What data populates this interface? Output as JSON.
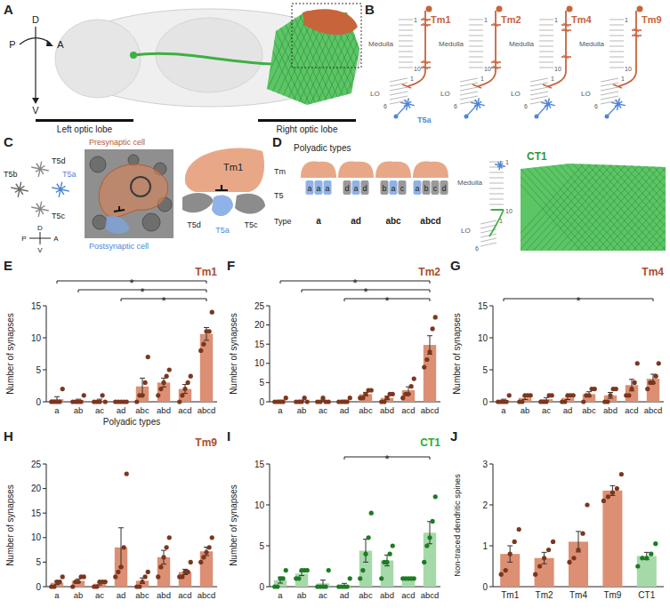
{
  "chart_data": [
    {
      "type": "bar",
      "panel": "E",
      "title": "Tm1",
      "y_label": "Number of synapses",
      "x_label": "Polyadic types",
      "categories": [
        "a",
        "ab",
        "ac",
        "ad",
        "abc",
        "abd",
        "acd",
        "abcd"
      ],
      "values": [
        0.4,
        0.2,
        0.2,
        0,
        2.4,
        3,
        2,
        10.6
      ],
      "errors": [
        0.4,
        0.2,
        0.2,
        0,
        1.3,
        0.7,
        0.7,
        1.0
      ],
      "points": [
        [
          0,
          0,
          0,
          0,
          2
        ],
        [
          0,
          0,
          0,
          0,
          1
        ],
        [
          0,
          0,
          0,
          1,
          0
        ],
        [
          0,
          0,
          0,
          0,
          0
        ],
        [
          0,
          1,
          1,
          3,
          7
        ],
        [
          1,
          2,
          3,
          4,
          5
        ],
        [
          0,
          1,
          2,
          3,
          4
        ],
        [
          8,
          9,
          11,
          11,
          14
        ]
      ],
      "color": "#dc8f73",
      "ylim": [
        0,
        15
      ],
      "yticks": [
        0,
        5,
        10,
        15
      ],
      "significance": [
        {
          "from": "a",
          "to": "abcd",
          "label": "*"
        },
        {
          "from": "ab",
          "to": "abcd",
          "label": "*"
        },
        {
          "from": "ad",
          "to": "abcd",
          "label": "*"
        }
      ]
    },
    {
      "type": "bar",
      "panel": "F",
      "title": "Tm2",
      "y_label": "Number of synapses",
      "categories": [
        "a",
        "ab",
        "ac",
        "ad",
        "abc",
        "abd",
        "acd",
        "abcd"
      ],
      "values": [
        0.2,
        0.2,
        0.2,
        0.2,
        2,
        1,
        3,
        14.8
      ],
      "errors": [
        0.2,
        0.2,
        0.2,
        0.2,
        0.45,
        0.45,
        0.9,
        2.4
      ],
      "points": [
        [
          0,
          0,
          0,
          0,
          1
        ],
        [
          0,
          0,
          0,
          1,
          0
        ],
        [
          0,
          0,
          1,
          0,
          0
        ],
        [
          0,
          0,
          0,
          0,
          1
        ],
        [
          1,
          1,
          2,
          3,
          3
        ],
        [
          0,
          0,
          1,
          2,
          2
        ],
        [
          1,
          2,
          2,
          4,
          6
        ],
        [
          9,
          11,
          13,
          19,
          22
        ]
      ],
      "color": "#dc8f73",
      "ylim": [
        0,
        25
      ],
      "yticks": [
        0,
        5,
        10,
        15,
        20,
        25
      ],
      "significance": [
        {
          "from": "a",
          "to": "abcd",
          "label": "*"
        },
        {
          "from": "ab",
          "to": "abcd",
          "label": "*"
        },
        {
          "from": "ad",
          "to": "abcd",
          "label": "*"
        }
      ]
    },
    {
      "type": "bar",
      "panel": "G",
      "title": "Tm4",
      "y_label": "Number of synapses",
      "categories": [
        "a",
        "ab",
        "ac",
        "ad",
        "abc",
        "abd",
        "acd",
        "abcd"
      ],
      "values": [
        0.2,
        0.6,
        0.4,
        0.6,
        1.2,
        1,
        2.6,
        3.6
      ],
      "errors": [
        0.2,
        0.25,
        0.25,
        0.25,
        0.37,
        0.45,
        0.9,
        0.7
      ],
      "points": [
        [
          0,
          0,
          0,
          0,
          1
        ],
        [
          0,
          0,
          1,
          1,
          1
        ],
        [
          0,
          0,
          0,
          1,
          1
        ],
        [
          0,
          0,
          1,
          1,
          1
        ],
        [
          0,
          1,
          1,
          2,
          2
        ],
        [
          0,
          0,
          1,
          2,
          2
        ],
        [
          1,
          1,
          2,
          3,
          6
        ],
        [
          2,
          3,
          3,
          4,
          6
        ]
      ],
      "color": "#dc8f73",
      "ylim": [
        0,
        15
      ],
      "yticks": [
        0,
        5,
        10,
        15
      ],
      "significance": [
        {
          "from": "a",
          "to": "abcd",
          "label": "*"
        }
      ]
    },
    {
      "type": "bar",
      "panel": "H",
      "title": "Tm9",
      "y_label": "Number of synapses",
      "categories": [
        "a",
        "ab",
        "ac",
        "ad",
        "abc",
        "abd",
        "acd",
        "abcd"
      ],
      "values": [
        0.8,
        1.2,
        0.6,
        8,
        1.2,
        6,
        3,
        7.2
      ],
      "errors": [
        0.37,
        0.37,
        0.25,
        4,
        0.58,
        1.4,
        0.55,
        0.86
      ],
      "points": [
        [
          0,
          0,
          1,
          1,
          2
        ],
        [
          0,
          1,
          1,
          2,
          2
        ],
        [
          0,
          0,
          1,
          1,
          1
        ],
        [
          2,
          3,
          4,
          8,
          23
        ],
        [
          0,
          0,
          1,
          2,
          3
        ],
        [
          2,
          4,
          6,
          8,
          10
        ],
        [
          2,
          2,
          3,
          3,
          5
        ],
        [
          5,
          6,
          7,
          8,
          10
        ]
      ],
      "color": "#dc8f73",
      "ylim": [
        0,
        25
      ],
      "yticks": [
        0,
        5,
        10,
        15,
        20,
        25
      ],
      "significance": []
    },
    {
      "type": "bar",
      "panel": "I",
      "title": "CT1",
      "y_label": "Number of synapses",
      "categories": [
        "a",
        "ab",
        "ac",
        "ad",
        "abc",
        "abd",
        "acd",
        "abcd"
      ],
      "values": [
        0.8,
        1.6,
        0.4,
        0.2,
        4.4,
        3.2,
        1,
        6.6
      ],
      "errors": [
        0.37,
        0.25,
        0.4,
        0.2,
        1.4,
        0.66,
        0,
        1.36
      ],
      "points": [
        [
          0,
          0,
          1,
          1,
          2
        ],
        [
          1,
          1,
          2,
          2,
          2
        ],
        [
          0,
          0,
          0,
          0,
          2
        ],
        [
          0,
          0,
          0,
          0,
          1
        ],
        [
          1,
          2,
          4,
          6,
          9
        ],
        [
          1,
          3,
          3,
          4,
          5
        ],
        [
          1,
          1,
          1,
          1,
          1
        ],
        [
          3,
          5,
          6,
          8,
          11
        ]
      ],
      "color": "#a6d9a9",
      "ylim": [
        0,
        15
      ],
      "yticks": [
        0,
        5,
        10,
        15
      ],
      "significance": [
        {
          "from": "ad",
          "to": "abcd",
          "label": "*"
        }
      ]
    },
    {
      "type": "bar",
      "panel": "J",
      "y_label": "Non-traced dendritic spines",
      "categories": [
        "Tm1",
        "Tm2",
        "Tm4",
        "Tm9",
        "CT1"
      ],
      "values": [
        0.8,
        0.7,
        1.1,
        2.35,
        0.75
      ],
      "errors": [
        0.2,
        0.14,
        0.25,
        0.12,
        0.09
      ],
      "points": [
        [
          0.3,
          0.4,
          0.8,
          1.1,
          1.4
        ],
        [
          0.3,
          0.5,
          0.7,
          0.9,
          1.1
        ],
        [
          0.6,
          0.7,
          0.9,
          1.3,
          2.0
        ],
        [
          2.1,
          2.2,
          2.3,
          2.4,
          2.75
        ],
        [
          0.5,
          0.7,
          0.7,
          0.8,
          1.05
        ]
      ],
      "colors": [
        "#dc8f73",
        "#dc8f73",
        "#dc8f73",
        "#dc8f73",
        "#a6d9a9"
      ],
      "ylim": [
        0,
        3
      ],
      "yticks": [
        0,
        1,
        2,
        3
      ],
      "significance": []
    }
  ],
  "figure": {
    "A": {
      "panel": "A",
      "compass": [
        "D",
        "V",
        "P",
        "A"
      ],
      "lobes": [
        "Left optic lobe",
        "Right optic lobe"
      ]
    },
    "B": {
      "panel": "B",
      "neurons": [
        "Tm1",
        "Tm2",
        "Tm4",
        "Tm9"
      ],
      "medulla": "Medulla",
      "lobula": "LO",
      "medulla_layers": [
        "1",
        "10"
      ],
      "lobula_layers": [
        "1",
        "6"
      ],
      "postsynaptic": "T5a"
    },
    "C": {
      "panel": "C",
      "t5": [
        "T5d",
        "T5b",
        "T5c",
        "T5a"
      ],
      "compass": [
        "D",
        "P",
        "A",
        "V"
      ],
      "presynaptic": "Presynaptic cell",
      "postsynaptic": "Postsynaptic cell",
      "schematic": [
        "Tm1",
        "T5d",
        "T5a",
        "T5c"
      ]
    },
    "D": {
      "panel": "D",
      "title": "Polyadic types",
      "rows": [
        "Tm",
        "T5",
        "Type"
      ],
      "types": [
        {
          "label": "a",
          "t5": [
            "a",
            "a",
            "a"
          ]
        },
        {
          "label": "ad",
          "t5": [
            "d",
            "a",
            "d"
          ]
        },
        {
          "label": "abc",
          "t5": [
            "b",
            "a",
            "c"
          ]
        },
        {
          "label": "abcd",
          "t5": [
            "a",
            "b",
            "c",
            "d"
          ]
        }
      ],
      "ct1": {
        "name": "CT1",
        "medulla": "Medulla",
        "lobula": "LO",
        "medulla_layers": [
          "1",
          "10"
        ],
        "lobula_layers": [
          "1",
          "6"
        ]
      }
    }
  }
}
